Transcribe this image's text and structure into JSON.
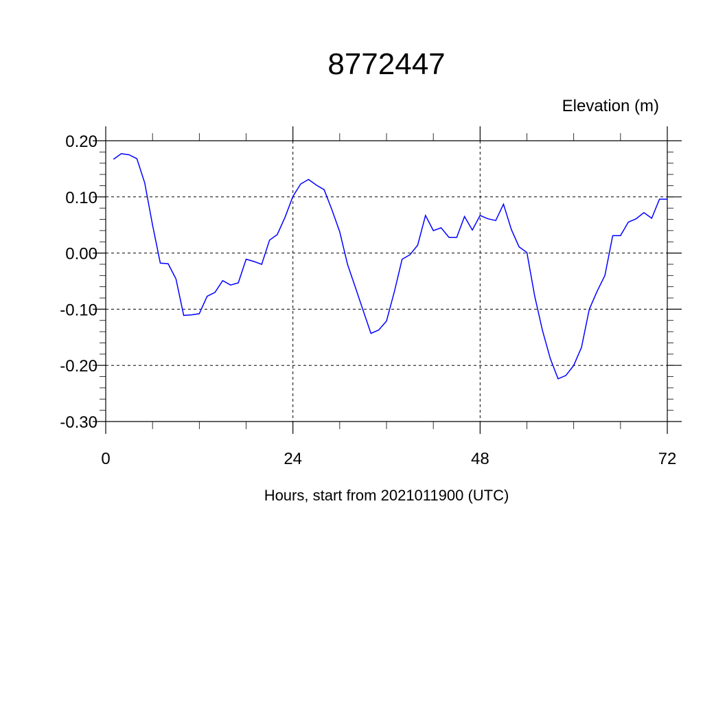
{
  "chart_data": {
    "type": "line",
    "title": "8772447",
    "subtitle": "Elevation (m)",
    "xlabel": "Hours, start from 2021011900 (UTC)",
    "ylabel": "",
    "xlim": [
      0,
      72
    ],
    "ylim": [
      -0.3,
      0.2
    ],
    "xticks": [
      0,
      24,
      48,
      72
    ],
    "xtick_labels": [
      "0",
      "24",
      "48",
      "72"
    ],
    "yticks": [
      0.2,
      0.1,
      0.0,
      -0.1,
      -0.2,
      -0.3
    ],
    "ytick_labels": [
      "0.20",
      "0.10",
      "0.00",
      "-0.10",
      "-0.20",
      "-0.30"
    ],
    "grid": true,
    "line_color": "#0000ff",
    "series": [
      {
        "x": [
          1,
          2,
          3,
          4,
          5,
          6,
          7,
          8,
          9,
          10,
          11,
          12,
          13,
          14,
          15,
          16,
          17,
          18,
          19,
          20,
          21,
          22,
          23,
          24,
          25,
          26,
          27,
          28,
          29,
          30,
          31,
          32,
          33,
          34,
          35,
          36,
          37,
          38,
          39,
          40,
          41,
          42,
          43,
          44,
          45,
          46,
          47,
          48,
          49,
          50,
          51,
          52,
          53,
          54,
          55,
          56,
          57,
          58,
          59,
          60,
          61,
          62,
          63,
          64,
          65,
          66,
          67,
          68,
          69,
          70,
          71,
          72
        ],
        "values": [
          0.167,
          0.177,
          0.175,
          0.168,
          0.125,
          0.05,
          -0.018,
          -0.019,
          -0.046,
          -0.111,
          -0.11,
          -0.108,
          -0.077,
          -0.07,
          -0.049,
          -0.057,
          -0.053,
          -0.011,
          -0.015,
          -0.02,
          0.023,
          0.033,
          0.064,
          0.101,
          0.123,
          0.131,
          0.121,
          0.113,
          0.077,
          0.038,
          -0.02,
          -0.061,
          -0.102,
          -0.143,
          -0.137,
          -0.121,
          -0.069,
          -0.011,
          -0.003,
          0.014,
          0.067,
          0.04,
          0.045,
          0.028,
          0.028,
          0.065,
          0.041,
          0.067,
          0.061,
          0.058,
          0.087,
          0.042,
          0.011,
          0.001,
          -0.077,
          -0.138,
          -0.188,
          -0.224,
          -0.218,
          -0.2,
          -0.168,
          -0.1,
          -0.068,
          -0.04,
          0.031,
          0.031,
          0.055,
          0.061,
          0.072,
          0.062,
          0.096,
          0.096
        ]
      }
    ]
  }
}
